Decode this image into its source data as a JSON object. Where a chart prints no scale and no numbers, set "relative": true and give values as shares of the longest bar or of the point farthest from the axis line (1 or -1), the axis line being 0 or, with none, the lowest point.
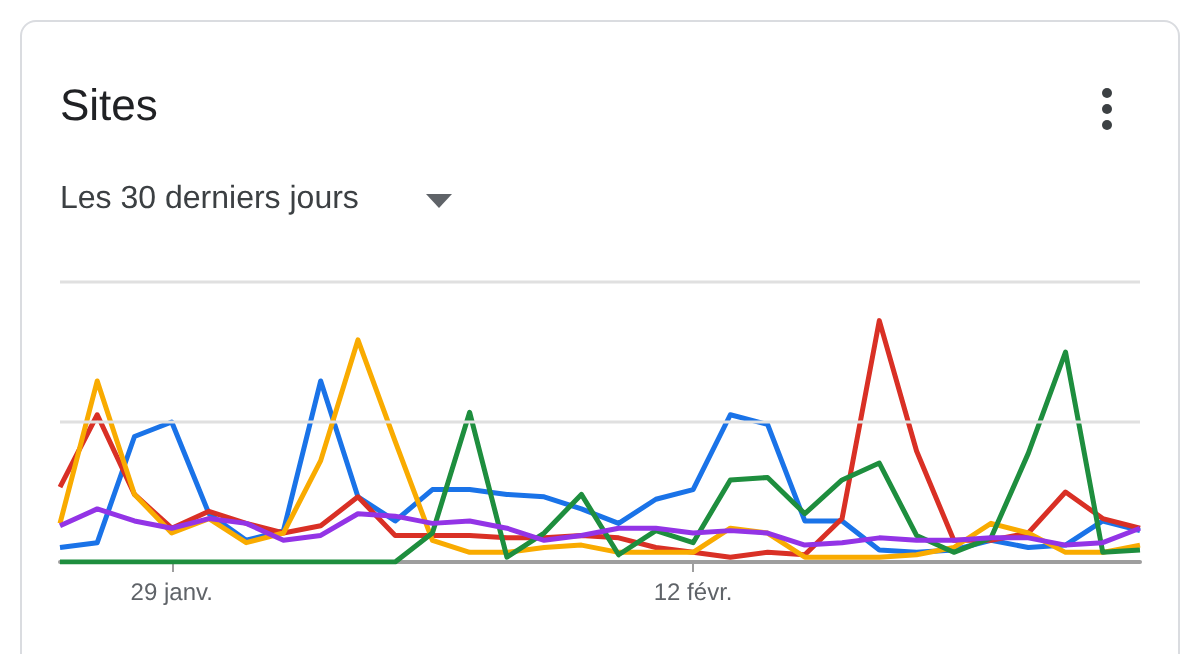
{
  "chart_data": {
    "type": "line",
    "title": "Sites",
    "subtitle": "Les 30 derniers jours",
    "relative": true,
    "marker": "none",
    "ref_lines": [
      {
        "axis": "y",
        "value": 0.58,
        "color": "#e0e0e0"
      },
      {
        "axis": "y",
        "value": 1.16,
        "color": "#e0e0e0"
      }
    ],
    "categories": [
      null,
      null,
      null,
      "29 janv.",
      null,
      null,
      null,
      null,
      null,
      null,
      null,
      null,
      null,
      null,
      null,
      null,
      null,
      "12 févr.",
      null,
      null,
      null,
      null,
      null,
      null,
      null,
      null,
      null,
      null,
      null,
      null
    ],
    "series": [
      {
        "color": "#1a73e8",
        "values": [
          0.06,
          0.08,
          0.52,
          0.58,
          0.2,
          0.09,
          0.13,
          0.75,
          0.27,
          0.17,
          0.3,
          0.3,
          0.28,
          0.27,
          0.22,
          0.16,
          0.26,
          0.3,
          0.61,
          0.57,
          0.17,
          0.17,
          0.05,
          0.04,
          0.05,
          0.09,
          0.06,
          0.07,
          0.17,
          0.13
        ]
      },
      {
        "color": "#d93025",
        "values": [
          0.31,
          0.61,
          0.28,
          0.14,
          0.21,
          0.16,
          0.12,
          0.15,
          0.27,
          0.11,
          0.11,
          0.11,
          0.1,
          0.1,
          0.11,
          0.1,
          0.06,
          0.04,
          0.02,
          0.04,
          0.03,
          0.18,
          1,
          0.46,
          0.09,
          0.09,
          0.12,
          0.29,
          0.18,
          0.14
        ]
      },
      {
        "color": "#f9ab00",
        "values": [
          0.16,
          0.75,
          0.28,
          0.12,
          0.18,
          0.08,
          0.12,
          0.42,
          0.92,
          0.5,
          0.09,
          0.04,
          0.04,
          0.06,
          0.07,
          0.04,
          0.04,
          0.04,
          0.14,
          0.12,
          0.02,
          0.02,
          0.02,
          0.03,
          0.06,
          0.16,
          0.12,
          0.04,
          0.04,
          0.07
        ]
      },
      {
        "color": "#1e8e3e",
        "values": [
          0,
          0,
          0,
          0,
          0,
          0,
          0,
          0,
          0,
          0,
          0.12,
          0.62,
          0.02,
          0.12,
          0.28,
          0.03,
          0.13,
          0.08,
          0.34,
          0.35,
          0.2,
          0.34,
          0.41,
          0.11,
          0.04,
          0.1,
          0.45,
          0.87,
          0.04,
          0.05
        ]
      },
      {
        "color": "#9334e6",
        "values": [
          0.15,
          0.22,
          0.17,
          0.14,
          0.18,
          0.16,
          0.09,
          0.11,
          0.2,
          0.19,
          0.16,
          0.17,
          0.14,
          0.09,
          0.11,
          0.14,
          0.14,
          0.12,
          0.13,
          0.12,
          0.07,
          0.08,
          0.1,
          0.09,
          0.09,
          0.1,
          0.1,
          0.07,
          0.08,
          0.14
        ]
      }
    ]
  }
}
